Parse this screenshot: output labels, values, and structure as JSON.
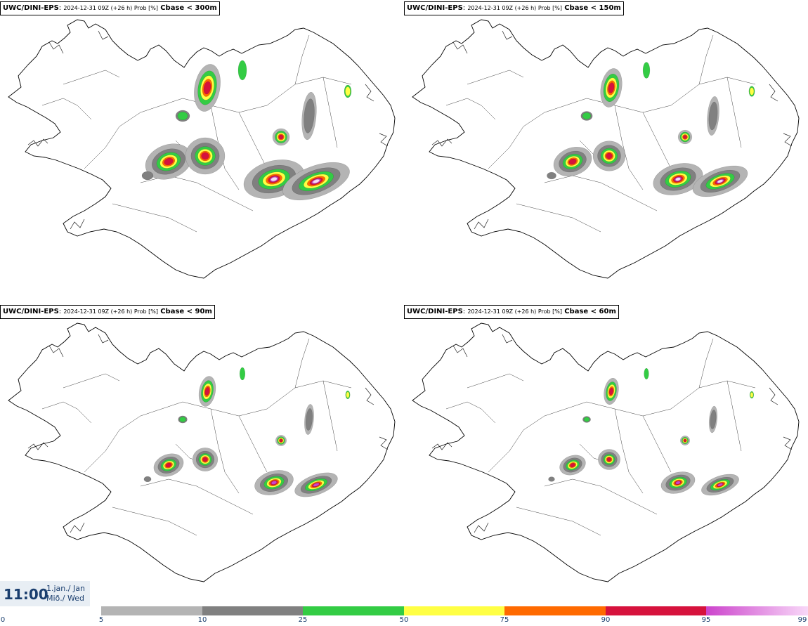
{
  "panels": [
    {
      "model": "UWC/DINI-EPS",
      "run": "2024-12-31 09Z (+26 h) Prob [%]",
      "param": "Cbase < 300m"
    },
    {
      "model": "UWC/DINI-EPS",
      "run": "2024-12-31 09Z (+26 h) Prob [%]",
      "param": "Cbase < 150m"
    },
    {
      "model": "UWC/DINI-EPS",
      "run": "2024-12-31 09Z (+26 h) Prob [%]",
      "param": "Cbase < 90m"
    },
    {
      "model": "UWC/DINI-EPS",
      "run": "2024-12-31 09Z (+26 h) Prob [%]",
      "param": "Cbase < 60m"
    }
  ],
  "valid_time": {
    "time": "11:00",
    "date_line1": "1.jan./ Jan",
    "date_line2": "Mið./ Wed"
  },
  "colorbar": {
    "ticks": [
      "0",
      "5",
      "10",
      "25",
      "50",
      "75",
      "90",
      "95",
      "99"
    ],
    "segments": [
      {
        "from": 5,
        "to": 10,
        "color": "#b4b4b4"
      },
      {
        "from": 10,
        "to": 25,
        "color": "#808080"
      },
      {
        "from": 25,
        "to": 50,
        "color": "#33cc44"
      },
      {
        "from": 50,
        "to": 75,
        "color": "#ffff44"
      },
      {
        "from": 75,
        "to": 90,
        "color": "#ff6a00"
      },
      {
        "from": 90,
        "to": 95,
        "color": "#d6123c"
      },
      {
        "from": 95,
        "to": 99,
        "color": "#cc44cc",
        "to_color": "#f8d8f8"
      }
    ]
  },
  "colors": {
    "accent": "#1a3e6e",
    "coast": "#000000",
    "mask_grey": "#9a9a9a"
  }
}
